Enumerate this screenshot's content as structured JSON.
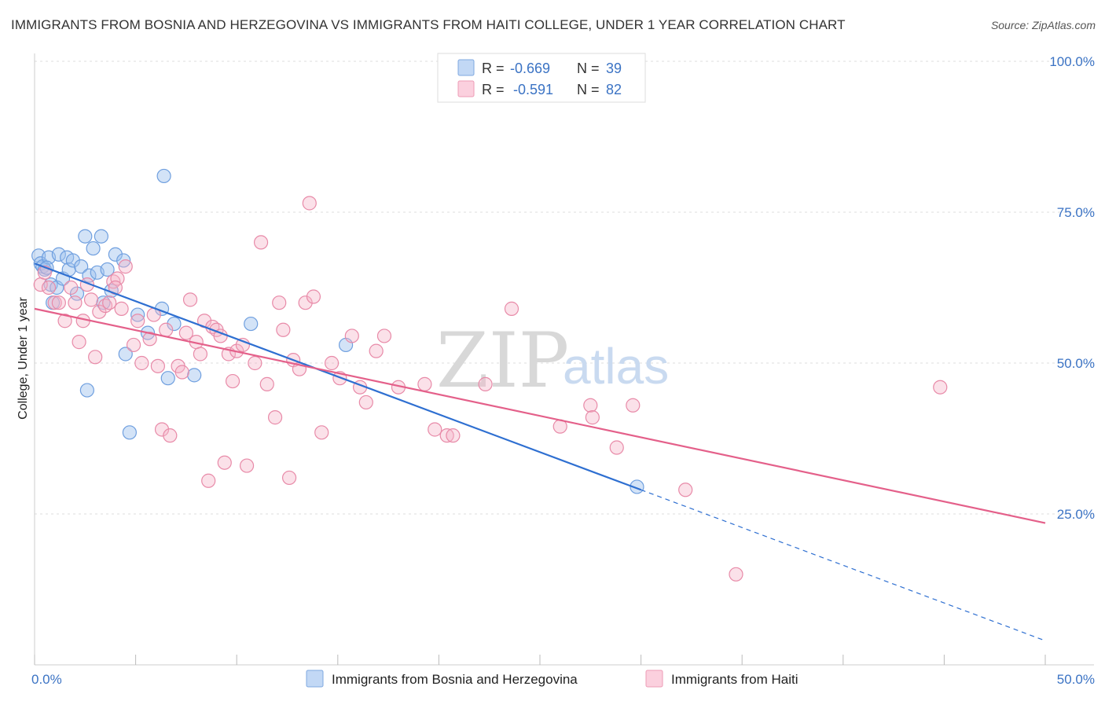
{
  "title": "IMMIGRANTS FROM BOSNIA AND HERZEGOVINA VS IMMIGRANTS FROM HAITI COLLEGE, UNDER 1 YEAR CORRELATION CHART",
  "source": "Source: ZipAtlas.com",
  "watermark": {
    "zip": "ZIP",
    "atlas": "atlas"
  },
  "legend": {
    "r_label": "R =",
    "n_label": "N =",
    "entries": [
      {
        "r": "-0.669",
        "n": "39"
      },
      {
        "r": "-0.591",
        "n": "82"
      }
    ]
  },
  "chart_data": {
    "type": "scatter",
    "xlabel": "",
    "ylabel": "College, Under 1 year",
    "xlim": [
      0,
      50
    ],
    "ylim": [
      0,
      105
    ],
    "x_tick_labels": {
      "0": "0.0%",
      "50": "50.0%"
    },
    "y_ticks": [
      25,
      50,
      75,
      100
    ],
    "y_tick_labels": [
      "25.0%",
      "50.0%",
      "75.0%",
      "100.0%"
    ],
    "grid": "horizontal dashed",
    "legend_placement": "top-center",
    "colors": {
      "bosnia": "#9dc0ee",
      "bosnia_line": "#2e6fd1",
      "haiti": "#f6b5c9",
      "haiti_line": "#e4608a"
    },
    "series": [
      {
        "name": "Immigrants from Bosnia and Herzegovina",
        "color": "#9dc0ee",
        "points": [
          [
            0.2,
            67.8
          ],
          [
            0.3,
            66.5
          ],
          [
            0.4,
            66.0
          ],
          [
            0.5,
            65.5
          ],
          [
            0.7,
            67.5
          ],
          [
            0.8,
            63.0
          ],
          [
            0.9,
            60.0
          ],
          [
            1.1,
            62.5
          ],
          [
            1.2,
            68.0
          ],
          [
            1.4,
            64.0
          ],
          [
            1.6,
            67.5
          ],
          [
            1.7,
            65.5
          ],
          [
            1.9,
            67.0
          ],
          [
            2.1,
            61.5
          ],
          [
            2.3,
            66.0
          ],
          [
            2.5,
            71.0
          ],
          [
            2.7,
            64.5
          ],
          [
            2.9,
            69.0
          ],
          [
            3.1,
            65.0
          ],
          [
            3.3,
            71.0
          ],
          [
            3.4,
            60.0
          ],
          [
            3.6,
            65.5
          ],
          [
            3.8,
            62.0
          ],
          [
            4.0,
            68.0
          ],
          [
            4.4,
            67.0
          ],
          [
            2.6,
            45.5
          ],
          [
            4.5,
            51.5
          ],
          [
            4.7,
            38.5
          ],
          [
            5.1,
            58.0
          ],
          [
            5.6,
            55.0
          ],
          [
            6.3,
            59.0
          ],
          [
            6.4,
            81.0
          ],
          [
            6.6,
            47.5
          ],
          [
            6.9,
            56.5
          ],
          [
            7.9,
            48.0
          ],
          [
            10.7,
            56.5
          ],
          [
            15.4,
            53.0
          ],
          [
            29.8,
            29.5
          ],
          [
            0.6,
            65.8
          ]
        ],
        "trend": {
          "x0": 0,
          "y0": 66.5,
          "x1": 30,
          "y1": 29.0,
          "dashed_to": {
            "x": 50,
            "y": 4.0
          }
        }
      },
      {
        "name": "Immigrants from Haiti",
        "color": "#f6b5c9",
        "points": [
          [
            0.3,
            63.0
          ],
          [
            0.5,
            65.0
          ],
          [
            0.7,
            62.5
          ],
          [
            1.0,
            60.0
          ],
          [
            1.2,
            60.0
          ],
          [
            1.5,
            57.0
          ],
          [
            1.8,
            62.5
          ],
          [
            2.0,
            60.0
          ],
          [
            2.2,
            53.5
          ],
          [
            2.4,
            57.0
          ],
          [
            2.6,
            63.0
          ],
          [
            2.8,
            60.5
          ],
          [
            3.0,
            51.0
          ],
          [
            3.2,
            58.5
          ],
          [
            3.5,
            59.5
          ],
          [
            3.7,
            60.0
          ],
          [
            3.9,
            63.5
          ],
          [
            4.1,
            64.0
          ],
          [
            4.3,
            59.0
          ],
          [
            4.5,
            66.0
          ],
          [
            4.9,
            53.0
          ],
          [
            5.1,
            57.0
          ],
          [
            5.3,
            50.0
          ],
          [
            5.7,
            54.0
          ],
          [
            5.9,
            58.0
          ],
          [
            6.1,
            49.5
          ],
          [
            6.3,
            39.0
          ],
          [
            6.5,
            55.5
          ],
          [
            6.7,
            38.0
          ],
          [
            7.1,
            49.5
          ],
          [
            7.3,
            48.5
          ],
          [
            7.5,
            55.0
          ],
          [
            7.7,
            60.5
          ],
          [
            8.0,
            53.5
          ],
          [
            8.2,
            51.5
          ],
          [
            8.4,
            57.0
          ],
          [
            8.6,
            30.5
          ],
          [
            8.8,
            56.0
          ],
          [
            9.0,
            55.5
          ],
          [
            9.2,
            54.5
          ],
          [
            9.4,
            33.5
          ],
          [
            9.6,
            51.5
          ],
          [
            9.8,
            47.0
          ],
          [
            10.0,
            52.0
          ],
          [
            10.3,
            53.0
          ],
          [
            10.5,
            33.0
          ],
          [
            10.9,
            50.0
          ],
          [
            11.2,
            70.0
          ],
          [
            11.5,
            46.5
          ],
          [
            11.9,
            41.0
          ],
          [
            12.1,
            60.0
          ],
          [
            12.3,
            55.5
          ],
          [
            12.6,
            31.0
          ],
          [
            12.8,
            50.5
          ],
          [
            13.1,
            49.0
          ],
          [
            13.4,
            60.0
          ],
          [
            13.8,
            61.0
          ],
          [
            14.2,
            38.5
          ],
          [
            14.7,
            50.0
          ],
          [
            15.1,
            47.5
          ],
          [
            15.7,
            54.5
          ],
          [
            16.4,
            43.5
          ],
          [
            16.9,
            52.0
          ],
          [
            17.3,
            54.5
          ],
          [
            18.0,
            46.0
          ],
          [
            19.3,
            46.5
          ],
          [
            19.8,
            39.0
          ],
          [
            20.4,
            38.0
          ],
          [
            20.7,
            38.0
          ],
          [
            22.3,
            46.5
          ],
          [
            23.6,
            59.0
          ],
          [
            13.6,
            76.5
          ],
          [
            26.0,
            39.5
          ],
          [
            27.5,
            43.0
          ],
          [
            27.6,
            41.0
          ],
          [
            28.8,
            36.0
          ],
          [
            29.6,
            43.0
          ],
          [
            32.2,
            29.0
          ],
          [
            34.7,
            15.0
          ],
          [
            44.8,
            46.0
          ],
          [
            16.1,
            46.0
          ],
          [
            4.0,
            62.5
          ]
        ],
        "trend": {
          "x0": 0,
          "y0": 59.0,
          "x1": 50,
          "y1": 23.5
        }
      }
    ]
  }
}
